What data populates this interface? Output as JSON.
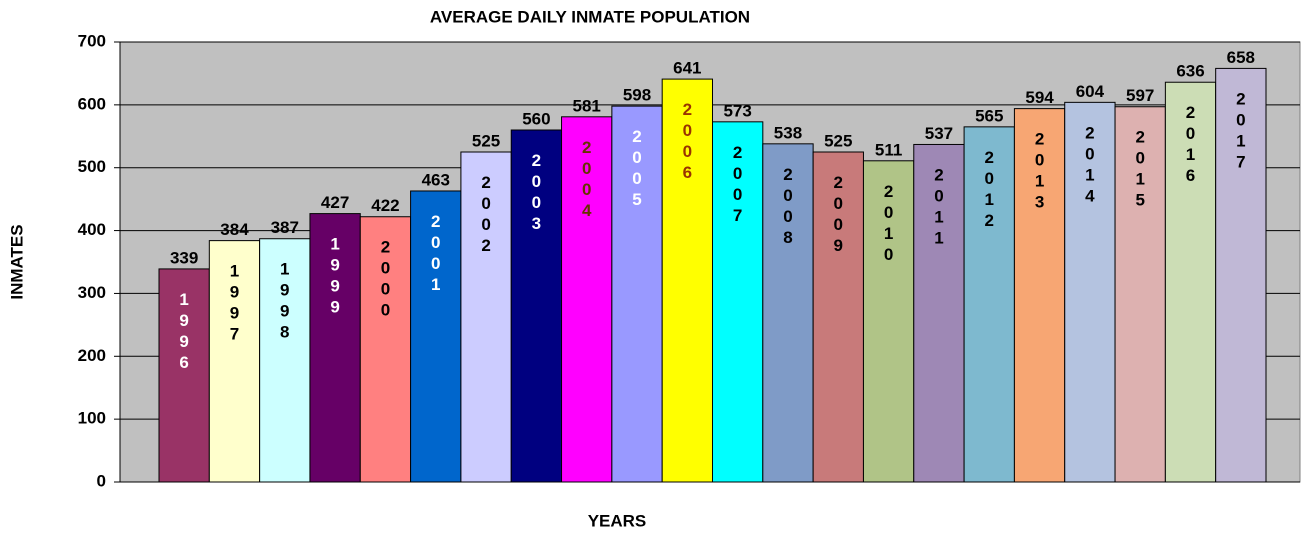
{
  "chart_data": {
    "type": "bar",
    "title": "AVERAGE DAILY INMATE POPULATION",
    "x_label": "YEARS",
    "y_label": "INMATES",
    "categories": [
      "1996",
      "1997",
      "1998",
      "1999",
      "2000",
      "2001",
      "2002",
      "2003",
      "2004",
      "2005",
      "2006",
      "2007",
      "2008",
      "2009",
      "2010",
      "2011",
      "2012",
      "2013",
      "2014",
      "2015",
      "2016",
      "2017"
    ],
    "values": [
      339,
      384,
      387,
      427,
      422,
      463,
      525,
      560,
      581,
      598,
      641,
      573,
      538,
      525,
      511,
      537,
      565,
      594,
      604,
      597,
      636,
      658
    ],
    "colors": [
      "#993366",
      "#FFFFCC",
      "#CCFFFF",
      "#660066",
      "#FF8080",
      "#0066CC",
      "#CCCCFF",
      "#000080",
      "#FF00FF",
      "#9999FF",
      "#FFFF00",
      "#00FFFF",
      "#7F9BC7",
      "#C87A7A",
      "#B0C487",
      "#9E88B5",
      "#7EB9CF",
      "#F7A673",
      "#B4C3E0",
      "#DDB1B0",
      "#CCDDB5",
      "#C0B8D6"
    ],
    "label_colors": [
      "#FFFFFF",
      "#000000",
      "#000000",
      "#FFFFFF",
      "#000000",
      "#FFFFFF",
      "#000000",
      "#FFFFFF",
      "#663300",
      "#FFFFFF",
      "#993300",
      "#000000",
      "#000000",
      "#000000",
      "#000000",
      "#000000",
      "#000000",
      "#000000",
      "#000000",
      "#000000",
      "#000000",
      "#000000"
    ],
    "ylim": [
      0,
      700
    ],
    "yticks": [
      0,
      100,
      200,
      300,
      400,
      500,
      600,
      700
    ],
    "grid": true
  }
}
